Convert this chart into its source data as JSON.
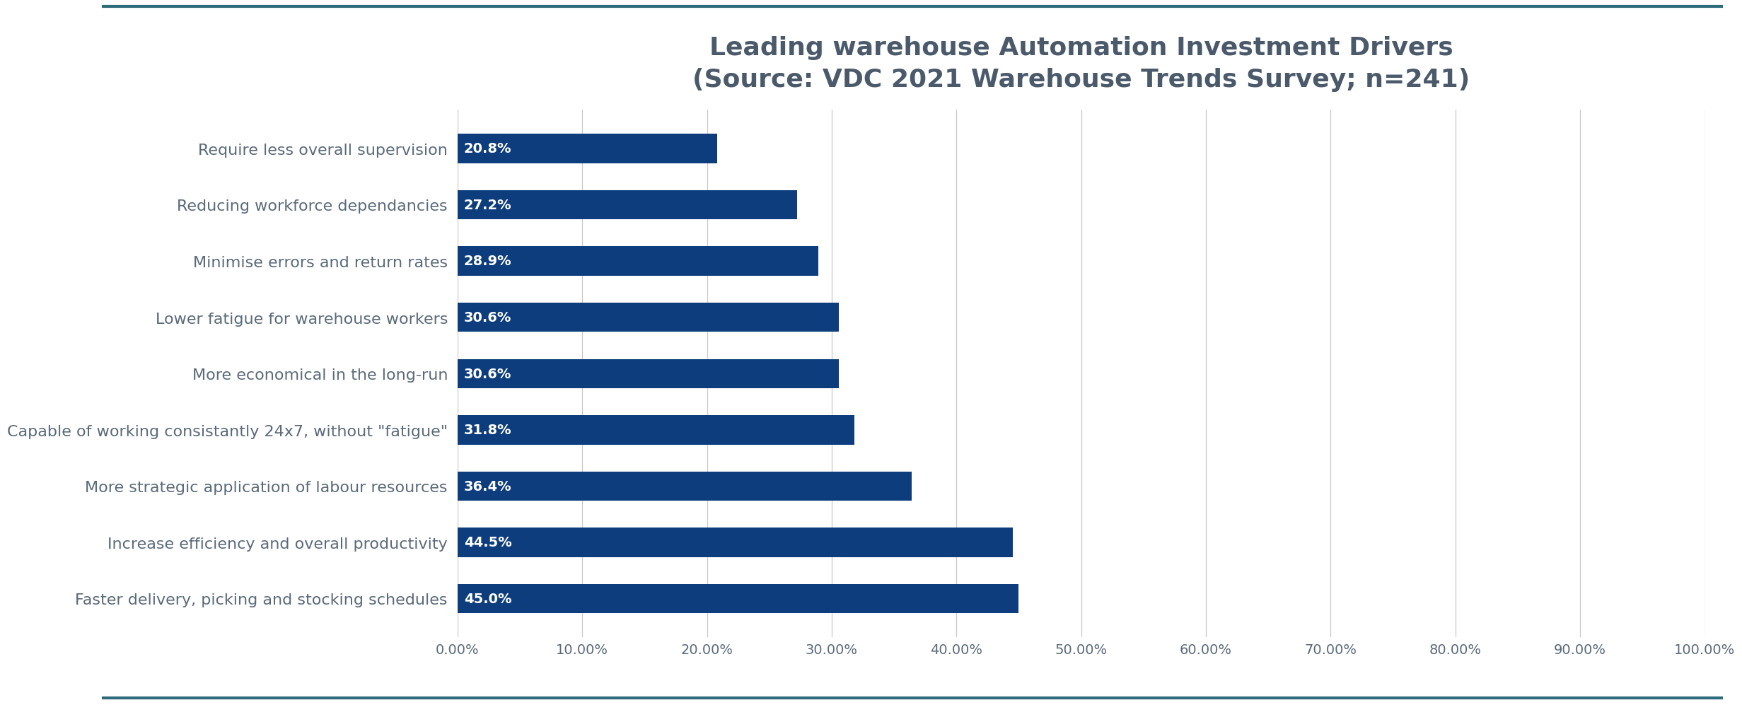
{
  "title": "Leading warehouse Automation Investment Drivers\n(Source: VDC 2021 Warehouse Trends Survey; n=241)",
  "categories": [
    "Faster delivery, picking and stocking schedules",
    "Increase efficiency and overall productivity",
    "More strategic application of labour resources",
    "Capable of working consistantly 24x7, without \"fatigue\"",
    "More economical in the long-run",
    "Lower fatigue for warehouse workers",
    "Minimise errors and return rates",
    "Reducing workforce dependancies",
    "Require less overall supervision"
  ],
  "values": [
    45.0,
    44.5,
    36.4,
    31.8,
    30.6,
    30.6,
    28.9,
    27.2,
    20.8
  ],
  "bar_color": "#0d3d7c",
  "label_color": "#ffffff",
  "title_color": "#4a5a6b",
  "axis_label_color": "#5a6a7a",
  "background_color": "#ffffff",
  "border_color": "#2d6a7a",
  "xlim": [
    0,
    100
  ],
  "xtick_values": [
    0,
    10,
    20,
    30,
    40,
    50,
    60,
    70,
    80,
    90,
    100
  ],
  "bar_height": 0.52,
  "title_fontsize": 26,
  "ytick_fontsize": 16,
  "xtick_fontsize": 14,
  "value_label_fontsize": 14
}
